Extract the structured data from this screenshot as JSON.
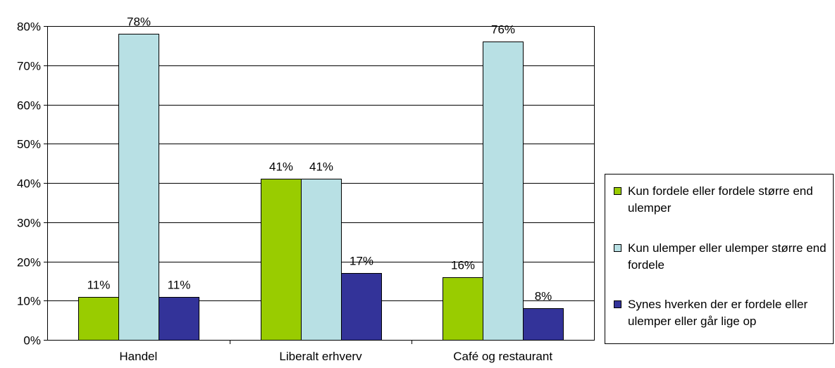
{
  "chart_data": {
    "type": "bar",
    "categories": [
      "Handel",
      "Liberalt erhverv",
      "Café og restaurant"
    ],
    "series": [
      {
        "name": "Kun fordele eller fordele større end ulemper",
        "values": [
          11,
          41,
          16
        ],
        "color": "#99cc00"
      },
      {
        "name": "Kun ulemper eller ulemper større end fordele",
        "values": [
          78,
          41,
          76
        ],
        "color": "#b8e0e4"
      },
      {
        "name": "Synes hverken der er fordele eller ulemper eller går lige op",
        "values": [
          11,
          17,
          8
        ],
        "color": "#333399"
      }
    ],
    "data_labels": [
      [
        "11%",
        "41%",
        "16%"
      ],
      [
        "78%",
        "41%",
        "76%"
      ],
      [
        "11%",
        "17%",
        "8%"
      ]
    ],
    "ylim": [
      0,
      80
    ],
    "yticks": [
      0,
      10,
      20,
      30,
      40,
      50,
      60,
      70,
      80
    ],
    "ytick_labels": [
      "0%",
      "10%",
      "20%",
      "30%",
      "40%",
      "50%",
      "60%",
      "70%",
      "80%"
    ],
    "gridlines": true,
    "legend_position": "right"
  }
}
